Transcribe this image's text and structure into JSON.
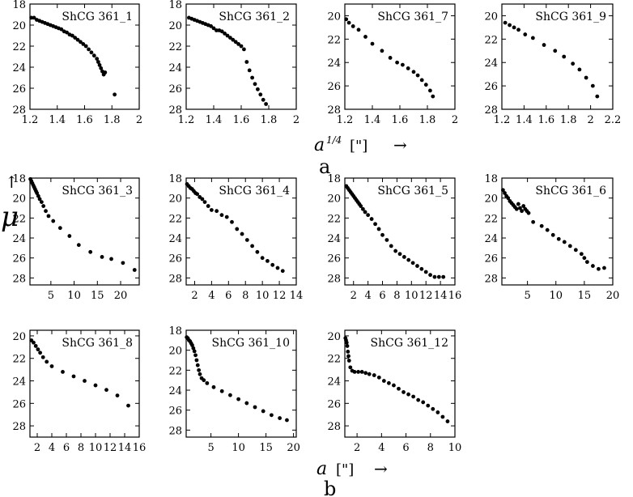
{
  "figure": {
    "mu_label": "μ",
    "mu_arrow": "↑",
    "label_a_top": "a",
    "label_a_sup": "1/4",
    "label_a_bracket": "[\"]",
    "label_a_arrow": "→",
    "label_b_axis": "a",
    "label_b_bracket": "[\"]",
    "label_b_arrow": "→",
    "sub_a": "a",
    "sub_b": "b"
  },
  "chart_data": [
    {
      "type": "scatter",
      "title": "ShCG 361_1",
      "xlim": [
        1.2,
        2.0
      ],
      "ylim": [
        28,
        18
      ],
      "invert_y": true,
      "xticks": [
        1.2,
        1.4,
        1.6,
        1.8,
        2.0
      ],
      "yticks": [
        18,
        20,
        22,
        24,
        26,
        28
      ],
      "x": [
        1.21,
        1.23,
        1.25,
        1.27,
        1.29,
        1.31,
        1.33,
        1.35,
        1.37,
        1.39,
        1.41,
        1.43,
        1.45,
        1.47,
        1.49,
        1.51,
        1.53,
        1.55,
        1.57,
        1.59,
        1.61,
        1.63,
        1.65,
        1.67,
        1.69,
        1.7,
        1.71,
        1.72,
        1.73,
        1.74,
        1.75,
        1.82
      ],
      "y": [
        19.3,
        19.3,
        19.5,
        19.6,
        19.7,
        19.8,
        19.9,
        20.0,
        20.1,
        20.2,
        20.3,
        20.4,
        20.6,
        20.7,
        20.9,
        21.0,
        21.2,
        21.4,
        21.6,
        21.8,
        22.0,
        22.3,
        22.6,
        22.9,
        23.2,
        23.5,
        23.8,
        24.1,
        24.4,
        24.7,
        24.5,
        26.6
      ]
    },
    {
      "type": "scatter",
      "title": "ShCG 361_2",
      "xlim": [
        1.2,
        2.0
      ],
      "ylim": [
        28,
        18
      ],
      "invert_y": true,
      "xticks": [
        1.2,
        1.4,
        1.6,
        1.8,
        2.0
      ],
      "yticks": [
        18,
        20,
        22,
        24,
        26,
        28
      ],
      "x": [
        1.22,
        1.24,
        1.26,
        1.28,
        1.3,
        1.32,
        1.34,
        1.36,
        1.38,
        1.4,
        1.42,
        1.44,
        1.46,
        1.48,
        1.5,
        1.52,
        1.54,
        1.56,
        1.58,
        1.6,
        1.62,
        1.64,
        1.66,
        1.68,
        1.7,
        1.72,
        1.74,
        1.76,
        1.78
      ],
      "y": [
        19.3,
        19.4,
        19.5,
        19.6,
        19.7,
        19.8,
        19.9,
        20.0,
        20.1,
        20.3,
        20.5,
        20.5,
        20.6,
        20.8,
        21.0,
        21.2,
        21.4,
        21.6,
        21.8,
        22.0,
        22.3,
        23.5,
        24.3,
        25.0,
        25.6,
        26.1,
        26.6,
        27.1,
        27.5
      ]
    },
    {
      "type": "scatter",
      "title": "ShCG 361_7",
      "xlim": [
        1.2,
        2.0
      ],
      "ylim": [
        28,
        19
      ],
      "invert_y": true,
      "xticks": [
        1.2,
        1.4,
        1.6,
        1.8,
        2.0
      ],
      "yticks": [
        20,
        22,
        24,
        26,
        28
      ],
      "x": [
        1.21,
        1.23,
        1.26,
        1.3,
        1.35,
        1.4,
        1.47,
        1.53,
        1.58,
        1.62,
        1.66,
        1.7,
        1.73,
        1.76,
        1.79,
        1.82,
        1.84
      ],
      "y": [
        20.3,
        20.6,
        20.9,
        21.2,
        21.8,
        22.4,
        23.0,
        23.6,
        24.0,
        24.2,
        24.5,
        24.8,
        25.1,
        25.5,
        25.9,
        26.4,
        26.9
      ]
    },
    {
      "type": "scatter",
      "title": "ShCG 361_9",
      "xlim": [
        1.2,
        2.2
      ],
      "ylim": [
        28,
        19
      ],
      "invert_y": true,
      "xticks": [
        1.2,
        1.4,
        1.6,
        1.8,
        2.0,
        2.2
      ],
      "yticks": [
        20,
        22,
        24,
        26,
        28
      ],
      "x": [
        1.23,
        1.27,
        1.31,
        1.35,
        1.41,
        1.48,
        1.58,
        1.68,
        1.76,
        1.84,
        1.9,
        1.96,
        2.02,
        2.06
      ],
      "y": [
        20.6,
        20.8,
        21.0,
        21.2,
        21.6,
        21.9,
        22.5,
        23.0,
        23.5,
        24.1,
        24.6,
        25.3,
        26.0,
        26.9
      ]
    },
    {
      "type": "scatter",
      "title": "ShCG 361_3",
      "xlim": [
        0.5,
        24
      ],
      "ylim": [
        28.7,
        18
      ],
      "invert_y": true,
      "xticks": [
        5,
        10,
        15,
        20
      ],
      "yticks": [
        18,
        20,
        22,
        24,
        26,
        28
      ],
      "x": [
        0.6,
        0.8,
        1.0,
        1.2,
        1.4,
        1.6,
        1.8,
        2.0,
        2.3,
        2.6,
        3.0,
        3.4,
        3.9,
        4.5,
        5.5,
        7.0,
        9.0,
        11.0,
        13.5,
        16.0,
        18.0,
        20.5,
        23.0
      ],
      "y": [
        18.1,
        18.3,
        18.5,
        18.7,
        18.9,
        19.1,
        19.3,
        19.5,
        19.8,
        20.1,
        20.4,
        20.8,
        21.3,
        21.8,
        22.3,
        23.0,
        23.8,
        24.7,
        25.4,
        25.9,
        26.1,
        26.5,
        27.2
      ]
    },
    {
      "type": "scatter",
      "title": "ShCG 361_4",
      "xlim": [
        1,
        14
      ],
      "ylim": [
        28.7,
        18
      ],
      "invert_y": true,
      "xticks": [
        2,
        4,
        6,
        8,
        10,
        12,
        14
      ],
      "yticks": [
        18,
        20,
        22,
        24,
        26,
        28
      ],
      "x": [
        1.1,
        1.3,
        1.5,
        1.7,
        1.9,
        2.1,
        2.3,
        2.6,
        2.9,
        3.2,
        3.6,
        4.0,
        4.6,
        5.2,
        5.8,
        6.4,
        7.0,
        7.6,
        8.2,
        8.8,
        9.4,
        10.0,
        10.6,
        11.2,
        11.8,
        12.4
      ],
      "y": [
        18.6,
        18.8,
        19.0,
        19.1,
        19.3,
        19.5,
        19.6,
        19.9,
        20.1,
        20.4,
        20.8,
        21.2,
        21.3,
        21.7,
        21.9,
        22.4,
        23.1,
        23.6,
        24.2,
        24.8,
        25.4,
        26.0,
        26.3,
        26.7,
        27.0,
        27.3
      ]
    },
    {
      "type": "scatter",
      "title": "ShCG 361_5",
      "xlim": [
        0.8,
        16
      ],
      "ylim": [
        28.7,
        18
      ],
      "invert_y": true,
      "xticks": [
        2,
        4,
        6,
        8,
        10,
        12,
        14,
        16
      ],
      "yticks": [
        18,
        20,
        22,
        24,
        26,
        28
      ],
      "x": [
        1.0,
        1.2,
        1.4,
        1.6,
        1.8,
        2.0,
        2.2,
        2.4,
        2.6,
        2.8,
        3.0,
        3.3,
        3.6,
        4.0,
        4.5,
        5.0,
        5.5,
        6.0,
        6.6,
        7.2,
        7.8,
        8.4,
        9.0,
        9.6,
        10.2,
        10.8,
        11.4,
        12.0,
        12.6,
        13.2,
        13.8,
        14.4
      ],
      "y": [
        18.8,
        19.0,
        19.2,
        19.4,
        19.6,
        19.8,
        20.0,
        20.2,
        20.4,
        20.6,
        20.8,
        21.1,
        21.4,
        21.7,
        22.1,
        22.6,
        23.1,
        23.7,
        24.2,
        24.8,
        25.3,
        25.6,
        25.9,
        26.2,
        26.5,
        26.8,
        27.1,
        27.4,
        27.7,
        27.9,
        27.9,
        27.9
      ]
    },
    {
      "type": "scatter",
      "title": "ShCG 361_6",
      "xlim": [
        0.5,
        20
      ],
      "ylim": [
        28.7,
        18
      ],
      "invert_y": true,
      "xticks": [
        5,
        10,
        15,
        20
      ],
      "yticks": [
        18,
        20,
        22,
        24,
        26,
        28
      ],
      "x": [
        0.7,
        1.0,
        1.3,
        1.6,
        1.9,
        2.2,
        2.5,
        2.8,
        3.1,
        3.4,
        3.7,
        4.0,
        4.3,
        4.6,
        4.9,
        5.2,
        6.0,
        7.5,
        8.5,
        9.5,
        10.5,
        11.5,
        12.5,
        13.5,
        14.5,
        15.0,
        15.5,
        16.5,
        17.5,
        18.5
      ],
      "y": [
        19.2,
        19.5,
        19.8,
        20.0,
        20.3,
        20.5,
        20.7,
        20.9,
        21.1,
        20.6,
        21.0,
        21.3,
        20.8,
        21.1,
        21.3,
        21.5,
        22.4,
        22.8,
        23.2,
        23.7,
        24.1,
        24.4,
        24.8,
        25.2,
        25.6,
        26.0,
        26.4,
        26.8,
        27.1,
        27.0
      ]
    },
    {
      "type": "scatter",
      "title": "ShCG 361_8",
      "xlim": [
        1,
        16
      ],
      "ylim": [
        29,
        19.5
      ],
      "invert_y": true,
      "xticks": [
        2,
        4,
        6,
        8,
        10,
        12,
        14,
        16
      ],
      "yticks": [
        20,
        22,
        24,
        26,
        28
      ],
      "x": [
        1.2,
        1.5,
        1.8,
        2.1,
        2.4,
        2.8,
        3.3,
        4.0,
        5.5,
        7.0,
        8.5,
        10.0,
        11.5,
        13.0,
        14.5
      ],
      "y": [
        20.4,
        20.6,
        20.9,
        21.2,
        21.5,
        21.9,
        22.3,
        22.7,
        23.2,
        23.6,
        24.0,
        24.4,
        24.8,
        25.3,
        26.2
      ]
    },
    {
      "type": "scatter",
      "title": "ShCG 361_10",
      "xlim": [
        0.5,
        20.5
      ],
      "ylim": [
        28.7,
        18
      ],
      "invert_y": true,
      "xticks": [
        5,
        10,
        15,
        20
      ],
      "yticks": [
        18,
        20,
        22,
        24,
        26,
        28
      ],
      "x": [
        0.6,
        0.8,
        1.0,
        1.2,
        1.4,
        1.6,
        1.8,
        2.0,
        2.2,
        2.4,
        2.6,
        2.8,
        3.0,
        3.3,
        3.7,
        4.3,
        5.5,
        7.0,
        8.5,
        10.0,
        11.5,
        13.0,
        14.5,
        16.0,
        17.5,
        18.8
      ],
      "y": [
        18.7,
        18.8,
        19.0,
        19.1,
        19.3,
        19.5,
        19.8,
        20.1,
        20.5,
        21.0,
        21.5,
        22.0,
        22.4,
        22.8,
        23.0,
        23.3,
        23.7,
        24.1,
        24.5,
        24.9,
        25.3,
        25.7,
        26.1,
        26.5,
        26.8,
        27.0
      ]
    },
    {
      "type": "scatter",
      "title": "ShCG 361_12",
      "xlim": [
        1,
        10
      ],
      "ylim": [
        29,
        19.5
      ],
      "invert_y": true,
      "xticks": [
        2,
        4,
        6,
        8,
        10
      ],
      "yticks": [
        20,
        22,
        24,
        26,
        28
      ],
      "x": [
        1.05,
        1.1,
        1.15,
        1.2,
        1.25,
        1.3,
        1.35,
        1.45,
        1.6,
        1.8,
        2.1,
        2.4,
        2.7,
        3.0,
        3.4,
        3.8,
        4.2,
        4.6,
        5.0,
        5.4,
        5.8,
        6.2,
        6.6,
        7.0,
        7.4,
        7.8,
        8.2,
        8.6,
        9.0,
        9.4
      ],
      "y": [
        20.2,
        20.4,
        20.6,
        20.9,
        21.4,
        21.8,
        22.2,
        22.8,
        23.1,
        23.2,
        23.2,
        23.2,
        23.3,
        23.4,
        23.5,
        23.7,
        24.0,
        24.2,
        24.4,
        24.7,
        25.0,
        25.2,
        25.4,
        25.7,
        25.9,
        26.2,
        26.5,
        26.8,
        27.2,
        27.6
      ]
    }
  ]
}
